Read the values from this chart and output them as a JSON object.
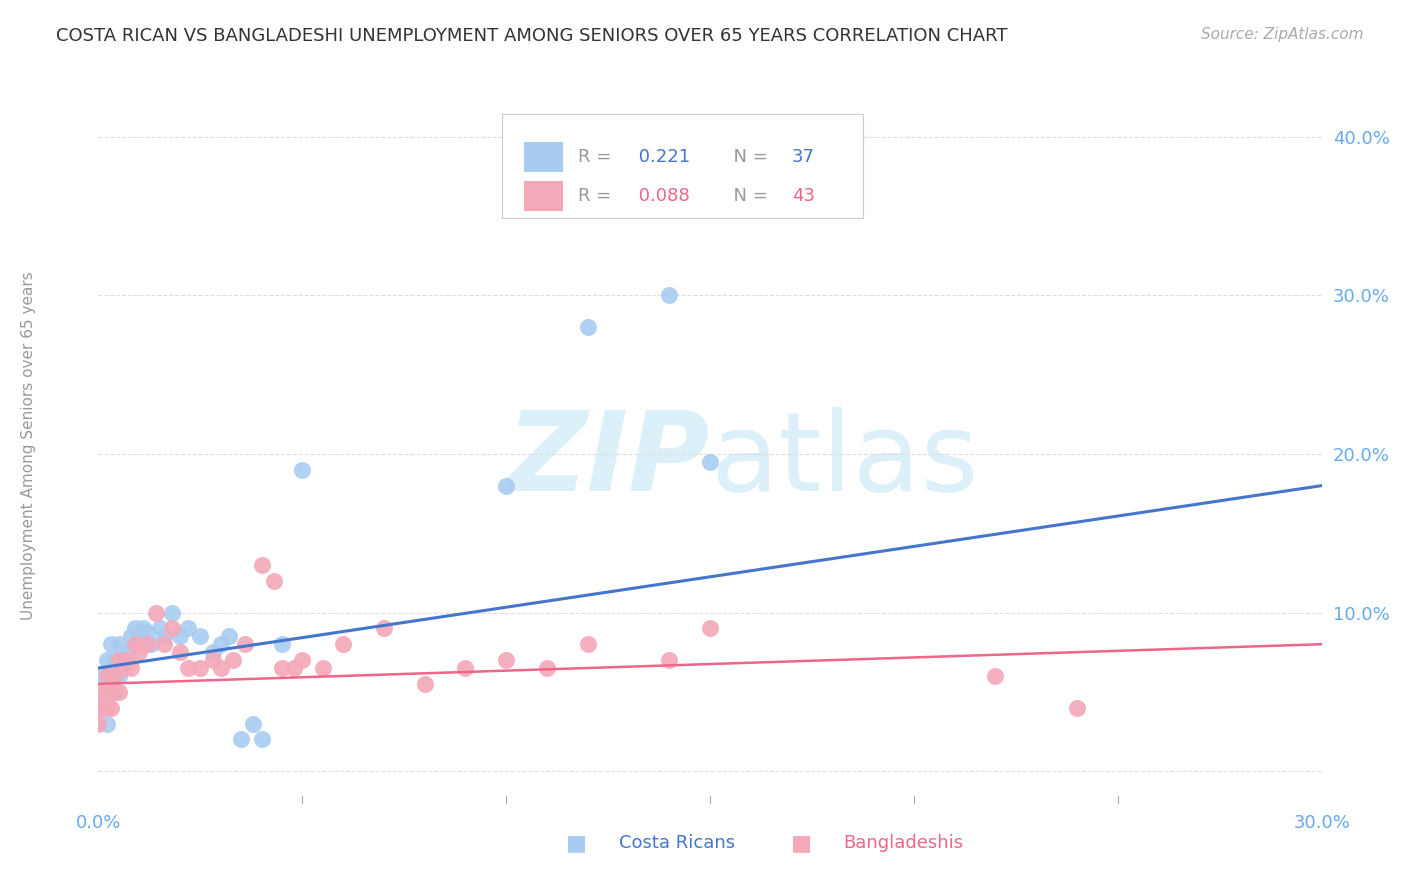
{
  "title": "COSTA RICAN VS BANGLADESHI UNEMPLOYMENT AMONG SENIORS OVER 65 YEARS CORRELATION CHART",
  "source": "Source: ZipAtlas.com",
  "ylabel": "Unemployment Among Seniors over 65 years",
  "xlim": [
    0.0,
    0.3
  ],
  "ylim": [
    -0.02,
    0.43
  ],
  "yticks": [
    0.0,
    0.1,
    0.2,
    0.3,
    0.4
  ],
  "ytick_labels": [
    "",
    "10.0%",
    "20.0%",
    "30.0%",
    "40.0%"
  ],
  "xticks": [
    0.0,
    0.05,
    0.1,
    0.15,
    0.2,
    0.25,
    0.3
  ],
  "xtick_labels": [
    "0.0%",
    "",
    "",
    "",
    "",
    "",
    "30.0%"
  ],
  "cr_R": 0.221,
  "cr_N": 37,
  "bd_R": 0.088,
  "bd_N": 43,
  "costa_rican_x": [
    0.0,
    0.001,
    0.001,
    0.002,
    0.002,
    0.003,
    0.003,
    0.004,
    0.004,
    0.005,
    0.005,
    0.006,
    0.007,
    0.008,
    0.009,
    0.01,
    0.011,
    0.012,
    0.013,
    0.015,
    0.016,
    0.018,
    0.02,
    0.022,
    0.025,
    0.028,
    0.03,
    0.032,
    0.035,
    0.038,
    0.04,
    0.045,
    0.05,
    0.1,
    0.12,
    0.14,
    0.15
  ],
  "costa_rican_y": [
    0.04,
    0.05,
    0.06,
    0.07,
    0.03,
    0.06,
    0.08,
    0.07,
    0.05,
    0.06,
    0.08,
    0.07,
    0.075,
    0.085,
    0.09,
    0.085,
    0.09,
    0.088,
    0.08,
    0.09,
    0.085,
    0.1,
    0.085,
    0.09,
    0.085,
    0.075,
    0.08,
    0.085,
    0.02,
    0.03,
    0.02,
    0.08,
    0.19,
    0.18,
    0.28,
    0.3,
    0.195
  ],
  "bangladeshi_x": [
    0.0,
    0.001,
    0.001,
    0.002,
    0.002,
    0.003,
    0.003,
    0.004,
    0.005,
    0.005,
    0.006,
    0.007,
    0.008,
    0.009,
    0.01,
    0.012,
    0.014,
    0.016,
    0.018,
    0.02,
    0.022,
    0.025,
    0.028,
    0.03,
    0.033,
    0.036,
    0.04,
    0.043,
    0.045,
    0.048,
    0.05,
    0.055,
    0.06,
    0.07,
    0.08,
    0.09,
    0.1,
    0.11,
    0.12,
    0.14,
    0.15,
    0.22,
    0.24
  ],
  "bangladeshi_y": [
    0.03,
    0.04,
    0.05,
    0.04,
    0.06,
    0.05,
    0.04,
    0.06,
    0.07,
    0.05,
    0.065,
    0.07,
    0.065,
    0.08,
    0.075,
    0.08,
    0.1,
    0.08,
    0.09,
    0.075,
    0.065,
    0.065,
    0.07,
    0.065,
    0.07,
    0.08,
    0.13,
    0.12,
    0.065,
    0.065,
    0.07,
    0.065,
    0.08,
    0.09,
    0.055,
    0.065,
    0.07,
    0.065,
    0.08,
    0.07,
    0.09,
    0.06,
    0.04
  ],
  "cr_trend_x0": 0.0,
  "cr_trend_x1": 0.3,
  "cr_trend_y0": 0.065,
  "cr_trend_y1": 0.18,
  "bd_trend_x0": 0.0,
  "bd_trend_x1": 0.3,
  "bd_trend_y0": 0.055,
  "bd_trend_y1": 0.08,
  "cr_color": "#A8CCF0",
  "bd_color": "#F4A8B8",
  "cr_line_color": "#4477CC",
  "bd_line_color": "#EE6688",
  "watermark_color": "#DCF0FA",
  "title_color": "#333333",
  "axis_color": "#66AAEE",
  "grid_color": "#DDDDDD",
  "background_color": "#FFFFFF"
}
